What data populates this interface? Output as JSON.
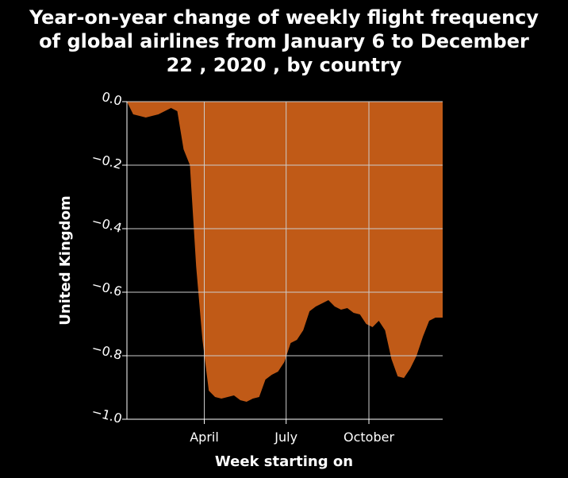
{
  "chart_data": {
    "type": "area",
    "title_lines": [
      "Year-on-year change of weekly flight frequency",
      "of global airlines from January 6 to December",
      "22 , 2020 , by country"
    ],
    "xlabel": "Week starting on",
    "ylabel": "United Kingdom",
    "x_ticks": [
      {
        "label": "April",
        "date": "2020-04-01"
      },
      {
        "label": "July",
        "date": "2020-07-01"
      },
      {
        "label": "October",
        "date": "2020-10-01"
      }
    ],
    "y_ticks": [
      "0.0",
      "−0.2",
      "−0.4",
      "−0.6",
      "−0.8",
      "−1.0"
    ],
    "y_tick_values": [
      0.0,
      -0.2,
      -0.4,
      -0.6,
      -0.8,
      -1.0
    ],
    "xlim": [
      "2020-01-06",
      "2020-12-22"
    ],
    "ylim": [
      -1.0,
      0.0
    ],
    "grid": true,
    "fill_color": "#c05a17",
    "background_color": "#000000",
    "grid_color": "#cccccc",
    "series": [
      {
        "x": [
          "2020-01-06",
          "2020-01-13",
          "2020-01-20",
          "2020-01-27",
          "2020-02-03",
          "2020-02-10",
          "2020-02-17",
          "2020-02-24",
          "2020-03-02",
          "2020-03-09",
          "2020-03-16",
          "2020-03-23",
          "2020-03-30",
          "2020-04-06",
          "2020-04-13",
          "2020-04-20",
          "2020-04-27",
          "2020-05-04",
          "2020-05-11",
          "2020-05-18",
          "2020-05-25",
          "2020-06-01",
          "2020-06-08",
          "2020-06-15",
          "2020-06-22",
          "2020-06-29",
          "2020-07-06",
          "2020-07-13",
          "2020-07-20",
          "2020-07-27",
          "2020-08-03",
          "2020-08-10",
          "2020-08-17",
          "2020-08-24",
          "2020-08-31",
          "2020-09-07",
          "2020-09-14",
          "2020-09-21",
          "2020-09-28",
          "2020-10-05",
          "2020-10-12",
          "2020-10-19",
          "2020-10-26",
          "2020-11-02",
          "2020-11-09",
          "2020-11-16",
          "2020-11-23",
          "2020-11-30",
          "2020-12-07",
          "2020-12-14",
          "2020-12-22"
        ],
        "values": [
          0.0,
          -0.04,
          -0.045,
          -0.05,
          -0.045,
          -0.04,
          -0.03,
          -0.02,
          -0.03,
          -0.15,
          -0.2,
          -0.52,
          -0.75,
          -0.91,
          -0.93,
          -0.935,
          -0.93,
          -0.925,
          -0.94,
          -0.945,
          -0.935,
          -0.93,
          -0.875,
          -0.86,
          -0.85,
          -0.82,
          -0.76,
          -0.75,
          -0.72,
          -0.66,
          -0.645,
          -0.635,
          -0.625,
          -0.645,
          -0.655,
          -0.65,
          -0.665,
          -0.67,
          -0.7,
          -0.71,
          -0.69,
          -0.72,
          -0.81,
          -0.865,
          -0.87,
          -0.84,
          -0.8,
          -0.74,
          -0.69,
          -0.68,
          -0.68
        ]
      }
    ]
  }
}
